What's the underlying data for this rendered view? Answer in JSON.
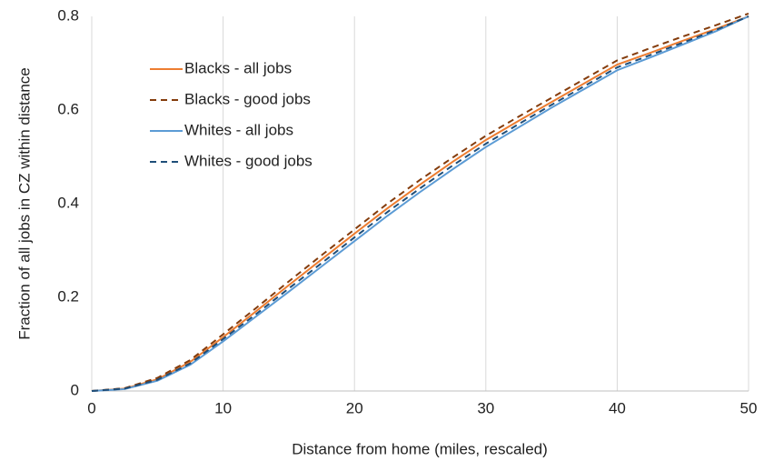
{
  "chart_data": {
    "type": "line",
    "xlabel": "Distance from home (miles, rescaled)",
    "ylabel": "Fraction of all jobs in CZ within distance",
    "x": [
      0,
      2.5,
      5,
      7.5,
      10,
      12.5,
      15,
      17.5,
      20,
      22.5,
      25,
      27.5,
      30,
      32.5,
      35,
      37.5,
      40,
      42.5,
      45,
      47.5,
      50
    ],
    "series": [
      {
        "name": "Blacks - all jobs",
        "color": "#ed7d31",
        "dash": false,
        "values": [
          0,
          0.005,
          0.025,
          0.062,
          0.115,
          0.17,
          0.226,
          0.281,
          0.336,
          0.39,
          0.441,
          0.49,
          0.536,
          0.577,
          0.617,
          0.657,
          0.697,
          0.722,
          0.748,
          0.773,
          0.8
        ]
      },
      {
        "name": "Blacks - good jobs",
        "color": "#843c0c",
        "dash": true,
        "values": [
          0,
          0.006,
          0.028,
          0.066,
          0.121,
          0.177,
          0.234,
          0.29,
          0.345,
          0.4,
          0.451,
          0.499,
          0.545,
          0.586,
          0.626,
          0.666,
          0.706,
          0.732,
          0.757,
          0.781,
          0.806
        ]
      },
      {
        "name": "Whites - all jobs",
        "color": "#5b9bd5",
        "dash": false,
        "values": [
          0,
          0.004,
          0.022,
          0.056,
          0.106,
          0.159,
          0.212,
          0.266,
          0.32,
          0.374,
          0.425,
          0.474,
          0.521,
          0.563,
          0.605,
          0.645,
          0.685,
          0.712,
          0.74,
          0.768,
          0.8
        ]
      },
      {
        "name": "Whites - good jobs",
        "color": "#1f4e79",
        "dash": true,
        "values": [
          0,
          0.005,
          0.024,
          0.059,
          0.111,
          0.164,
          0.219,
          0.273,
          0.328,
          0.382,
          0.433,
          0.482,
          0.528,
          0.57,
          0.611,
          0.651,
          0.691,
          0.717,
          0.744,
          0.771,
          0.8
        ]
      }
    ],
    "xlim": [
      0,
      50
    ],
    "xticks": [
      0,
      10,
      20,
      30,
      40,
      50
    ],
    "ylim": [
      0,
      0.8
    ],
    "yticks": [
      0,
      0.2,
      0.4,
      0.6,
      0.8
    ],
    "grid": "x",
    "legend": "upper left"
  }
}
